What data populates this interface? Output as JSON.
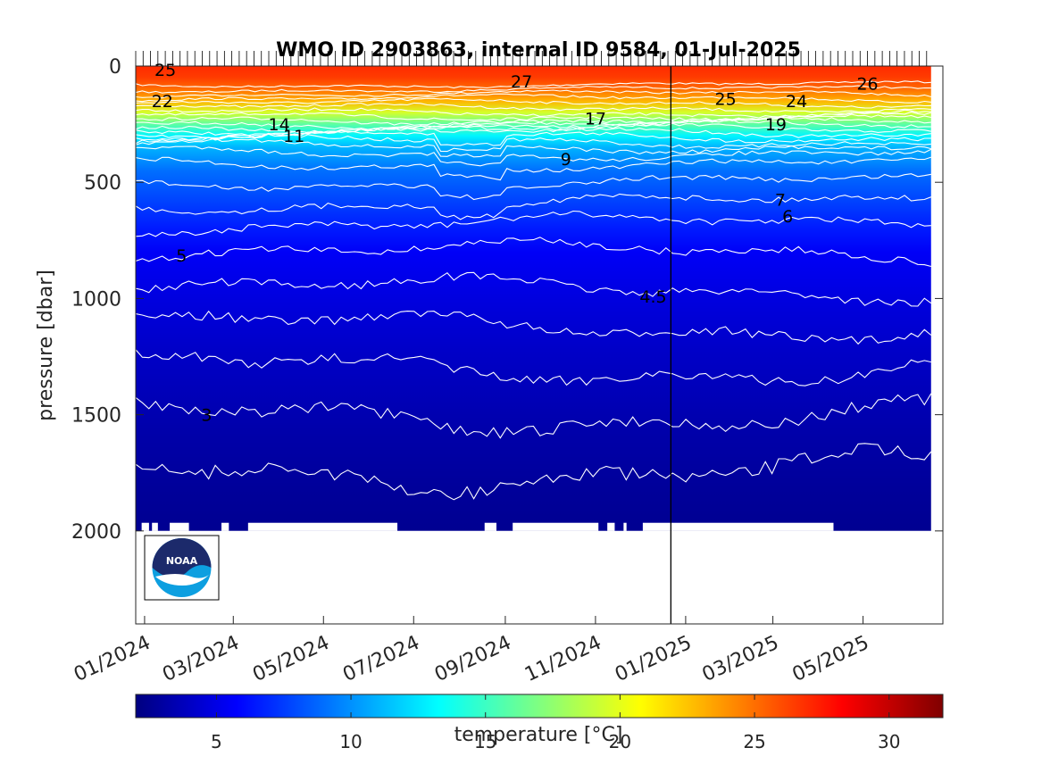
{
  "chart_data": {
    "type": "heatmap",
    "title": "WMO ID 2903863, internal ID 9584, 01-Jul-2025",
    "ylabel": "pressure [dbar]",
    "ylim": [
      0,
      2400
    ],
    "y_reversed": true,
    "y_ticks": [
      0,
      500,
      1000,
      1500,
      2000
    ],
    "y_tick_labels": [
      "0",
      "500",
      "1000",
      "1500",
      "2000"
    ],
    "x_range": [
      "2023-12-26",
      "2025-06-24"
    ],
    "x_ticks": [
      "2024-01-01",
      "2024-03-01",
      "2024-05-01",
      "2024-07-01",
      "2024-09-01",
      "2024-11-01",
      "2025-01-01",
      "2025-03-01",
      "2025-05-01"
    ],
    "x_tick_labels": [
      "01/2024",
      "03/2024",
      "05/2024",
      "07/2024",
      "09/2024",
      "11/2024",
      "01/2025",
      "03/2025",
      "05/2025"
    ],
    "data_x_range": [
      "2023-12-26",
      "2025-06-16"
    ],
    "vertical_marker_date": "2024-12-22",
    "colorbar": {
      "label": "temperature [°C]",
      "colormap": "jet",
      "range": [
        2,
        32
      ],
      "ticks": [
        5,
        10,
        15,
        20,
        25,
        30
      ],
      "tick_labels": [
        "5",
        "10",
        "15",
        "20",
        "25",
        "30"
      ]
    },
    "temperature_profile": [
      {
        "p": 0,
        "t": 27
      },
      {
        "p": 50,
        "t": 26.5
      },
      {
        "p": 100,
        "t": 25
      },
      {
        "p": 150,
        "t": 23
      },
      {
        "p": 200,
        "t": 19.5
      },
      {
        "p": 250,
        "t": 16
      },
      {
        "p": 300,
        "t": 13
      },
      {
        "p": 350,
        "t": 11
      },
      {
        "p": 400,
        "t": 10
      },
      {
        "p": 450,
        "t": 9
      },
      {
        "p": 500,
        "t": 8.5
      },
      {
        "p": 600,
        "t": 7.5
      },
      {
        "p": 700,
        "t": 6.5
      },
      {
        "p": 800,
        "t": 5.5
      },
      {
        "p": 1000,
        "t": 4.8
      },
      {
        "p": 1200,
        "t": 4.2
      },
      {
        "p": 1400,
        "t": 3.7
      },
      {
        "p": 1600,
        "t": 3.2
      },
      {
        "p": 1800,
        "t": 2.8
      },
      {
        "p": 2000,
        "t": 2.5
      }
    ],
    "contour_lines": [
      {
        "base_p": 80,
        "t": 26
      },
      {
        "base_p": 100,
        "t": 25
      },
      {
        "base_p": 120,
        "t": 24
      },
      {
        "base_p": 140,
        "t": 23
      },
      {
        "base_p": 160,
        "t": 22
      },
      {
        "base_p": 180,
        "t": 21
      },
      {
        "base_p": 200,
        "t": 20
      },
      {
        "base_p": 215,
        "t": 19
      },
      {
        "base_p": 230,
        "t": 18
      },
      {
        "base_p": 245,
        "t": 17
      },
      {
        "base_p": 260,
        "t": 16
      },
      {
        "base_p": 275,
        "t": 15
      },
      {
        "base_p": 290,
        "t": 14
      },
      {
        "base_p": 305,
        "t": 13
      },
      {
        "base_p": 325,
        "t": 12
      },
      {
        "base_p": 345,
        "t": 11
      },
      {
        "base_p": 375,
        "t": 10
      },
      {
        "base_p": 420,
        "t": 9
      },
      {
        "base_p": 500,
        "t": 8
      },
      {
        "base_p": 590,
        "t": 7
      },
      {
        "base_p": 680,
        "t": 6
      },
      {
        "base_p": 800,
        "t": 5.5
      },
      {
        "base_p": 960,
        "t": 5
      },
      {
        "base_p": 1120,
        "t": 4.5
      },
      {
        "base_p": 1300,
        "t": 4
      },
      {
        "base_p": 1500,
        "t": 3.5
      },
      {
        "base_p": 1740,
        "t": 3
      }
    ],
    "contour_labels": [
      {
        "text": "25",
        "date": "2024-01-15",
        "p": 15
      },
      {
        "text": "22",
        "date": "2024-01-13",
        "p": 150
      },
      {
        "text": "14",
        "date": "2024-04-01",
        "p": 250
      },
      {
        "text": "11",
        "date": "2024-04-11",
        "p": 300
      },
      {
        "text": "27",
        "date": "2024-09-12",
        "p": 65
      },
      {
        "text": "17",
        "date": "2024-11-01",
        "p": 225
      },
      {
        "text": "9",
        "date": "2024-10-12",
        "p": 400
      },
      {
        "text": "25",
        "date": "2025-01-28",
        "p": 140
      },
      {
        "text": "24",
        "date": "2025-03-17",
        "p": 150
      },
      {
        "text": "19",
        "date": "2025-03-03",
        "p": 250
      },
      {
        "text": "26",
        "date": "2025-05-04",
        "p": 75
      },
      {
        "text": "7",
        "date": "2025-03-06",
        "p": 575
      },
      {
        "text": "6",
        "date": "2025-03-11",
        "p": 645
      },
      {
        "text": "5",
        "date": "2024-01-26",
        "p": 815
      },
      {
        "text": "4.5",
        "date": "2024-12-10",
        "p": 990
      },
      {
        "text": "3",
        "date": "2024-02-12",
        "p": 1500
      }
    ]
  }
}
